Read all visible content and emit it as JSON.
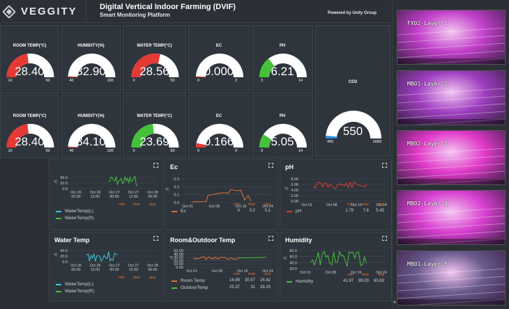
{
  "header": {
    "logo_text": "VEGGITY",
    "title": "Digital Vertical Indoor Farming (DVIF)",
    "subtitle": "Smart Monitoring Platform",
    "powered_by": "Powered by Unity Group"
  },
  "gauges_row1": [
    {
      "title": "ROOM TEMP(°C)",
      "value": "28.40",
      "min": "10",
      "max": "50",
      "fraction": 0.46,
      "color": "#e53935"
    },
    {
      "title": "HUMIDITY(%)",
      "value": "32.90",
      "min": "40",
      "max": "100",
      "fraction": 0.0,
      "color": "#e53935"
    },
    {
      "title": "WATER TEMP(°C)",
      "value": "28.56",
      "min": "0",
      "max": "50",
      "fraction": 0.57,
      "color": "#e53935"
    },
    {
      "title": "EC",
      "value": "0.000",
      "min": "0",
      "max": "3",
      "fraction": 0.0,
      "color": "#e53935"
    },
    {
      "title": "PH",
      "value": "6.21",
      "min": "3",
      "max": "14",
      "fraction": 0.29,
      "color": "#43c23a"
    }
  ],
  "gauges_row2": [
    {
      "title": "ROOM TEMP(°C)",
      "value": "28.40",
      "min": "10",
      "max": "50",
      "fraction": 0.46,
      "color": "#e53935"
    },
    {
      "title": "HUMIDITY(%)",
      "value": "34.10",
      "min": "40",
      "max": "100",
      "fraction": 0.0,
      "color": "#e53935"
    },
    {
      "title": "WATER TEMP(°C)",
      "value": "23.69",
      "min": "0",
      "max": "50",
      "fraction": 0.47,
      "color": "#43c23a"
    },
    {
      "title": "EC",
      "value": "0.166",
      "min": "0",
      "max": "3",
      "fraction": 0.06,
      "color": "#e53935"
    },
    {
      "title": "PH",
      "value": "5.05",
      "min": "3",
      "max": "14",
      "fraction": 0.19,
      "color": "#43c23a"
    }
  ],
  "co2_gauge": {
    "title": "CO2",
    "value": "550",
    "min": "400",
    "max": "5000",
    "fraction": 0.033,
    "color": "#2a8de0"
  },
  "charts": {
    "water_temp_top": {
      "title": "",
      "yticks": [
        "40.0",
        "20.0",
        "0.0"
      ],
      "xticks": [
        "Oct 26\n00:00",
        "Oct 26\n12:00",
        "Oct 27\n00:00",
        "Oct 27\n12:00",
        "Oct 28\n00:00"
      ],
      "stat_headers": [
        "min",
        "max",
        "avg"
      ],
      "legend": [
        {
          "name": "WaterTemp(L)",
          "color": "#3ec7e0",
          "stats": [
            "",
            "",
            ""
          ]
        },
        {
          "name": "WaterTemp(R)",
          "color": "#43c23a",
          "stats": [
            "",
            "",
            ""
          ]
        }
      ]
    },
    "ec": {
      "title": "Ec",
      "yticks": [
        "0.3",
        "0.2",
        "0.1",
        "0.0"
      ],
      "xticks": [
        "Oct 01",
        "Oct 08",
        "Oct 16",
        "Oct 24"
      ],
      "stat_headers": [
        "min",
        "max",
        "avg"
      ],
      "legend": [
        {
          "name": "Ec",
          "color": "#e0733a",
          "stats": [
            "0",
            "0.2",
            "0.1"
          ]
        }
      ]
    },
    "ph": {
      "title": "pH",
      "yticks": [
        "8.00",
        "6.00",
        "4.00",
        "2.00",
        "0.00"
      ],
      "xticks": [
        "Oct 01",
        "Oct 08",
        "Oct 16",
        "Oct 24"
      ],
      "stat_headers": [
        "min",
        "max",
        "avg"
      ],
      "legend": [
        {
          "name": "pH",
          "color": "#e53935",
          "stats": [
            "1.79",
            "7.6",
            "5.45"
          ]
        }
      ]
    },
    "water_temp": {
      "title": "Water Temp",
      "yticks": [
        "40.0",
        "20.0",
        "0.0"
      ],
      "xticks": [
        "Oct 26\n00:00",
        "Oct 26\n12:00",
        "Oct 27\n00:00",
        "Oct 27\n12:00",
        "Oct 28\n00:00"
      ],
      "stat_headers": [
        "min",
        "max",
        "avg"
      ],
      "legend": [
        {
          "name": "WaterTemp(L)",
          "color": "#3ec7e0",
          "stats": [
            "",
            "",
            ""
          ]
        },
        {
          "name": "WaterTemp(R)",
          "color": "#43c23a",
          "stats": [
            "",
            "",
            ""
          ]
        }
      ]
    },
    "room_outdoor": {
      "title": "Room&Outdoor Temp",
      "yticks": [
        "50.00",
        "40.00",
        "30.00",
        "20.00",
        "10.00",
        "0.00"
      ],
      "xticks": [
        "Oct 01",
        "Oct 08",
        "Oct 16",
        "Oct 24"
      ],
      "stat_headers": [
        "min",
        "max",
        "avg"
      ],
      "legend": [
        {
          "name": "Room Temp",
          "color": "#e0733a",
          "stats": [
            "16.89",
            "30.57",
            "24.82"
          ]
        },
        {
          "name": "OutdoorTemp",
          "color": "#43c23a",
          "stats": [
            "25.37",
            "31",
            "28.29"
          ]
        }
      ]
    },
    "humidity": {
      "title": "Humidity",
      "yticks": [
        "80.0",
        "60.0",
        "40.0",
        "20.0"
      ],
      "xticks": [
        "Oct 01",
        "Oct 08",
        "Oct 16",
        "Oct 24"
      ],
      "stat_headers": [
        "min",
        "max",
        "avg"
      ],
      "legend": [
        {
          "name": "Humidity",
          "color": "#43c23a",
          "stats": [
            "41.97",
            "99.03",
            "60.83"
          ]
        }
      ]
    }
  },
  "cameras": [
    {
      "label": "FX02-Layer 1",
      "tint": "#c03fc9"
    },
    {
      "label": "MB01-Layer 2",
      "tint": "#9e3fc0"
    },
    {
      "label": "MB02-Layer 3",
      "tint": "#e039c8"
    },
    {
      "label": "MB02-Layer 4",
      "tint": "#d83fd0"
    },
    {
      "label": "MB01-Layer 5",
      "tint": "#6a5a8e"
    }
  ],
  "colors": {
    "background": "#2b3036",
    "panel": "#2f353c",
    "gauge_track": "#ffffff",
    "stat_header": "#e0733a"
  }
}
